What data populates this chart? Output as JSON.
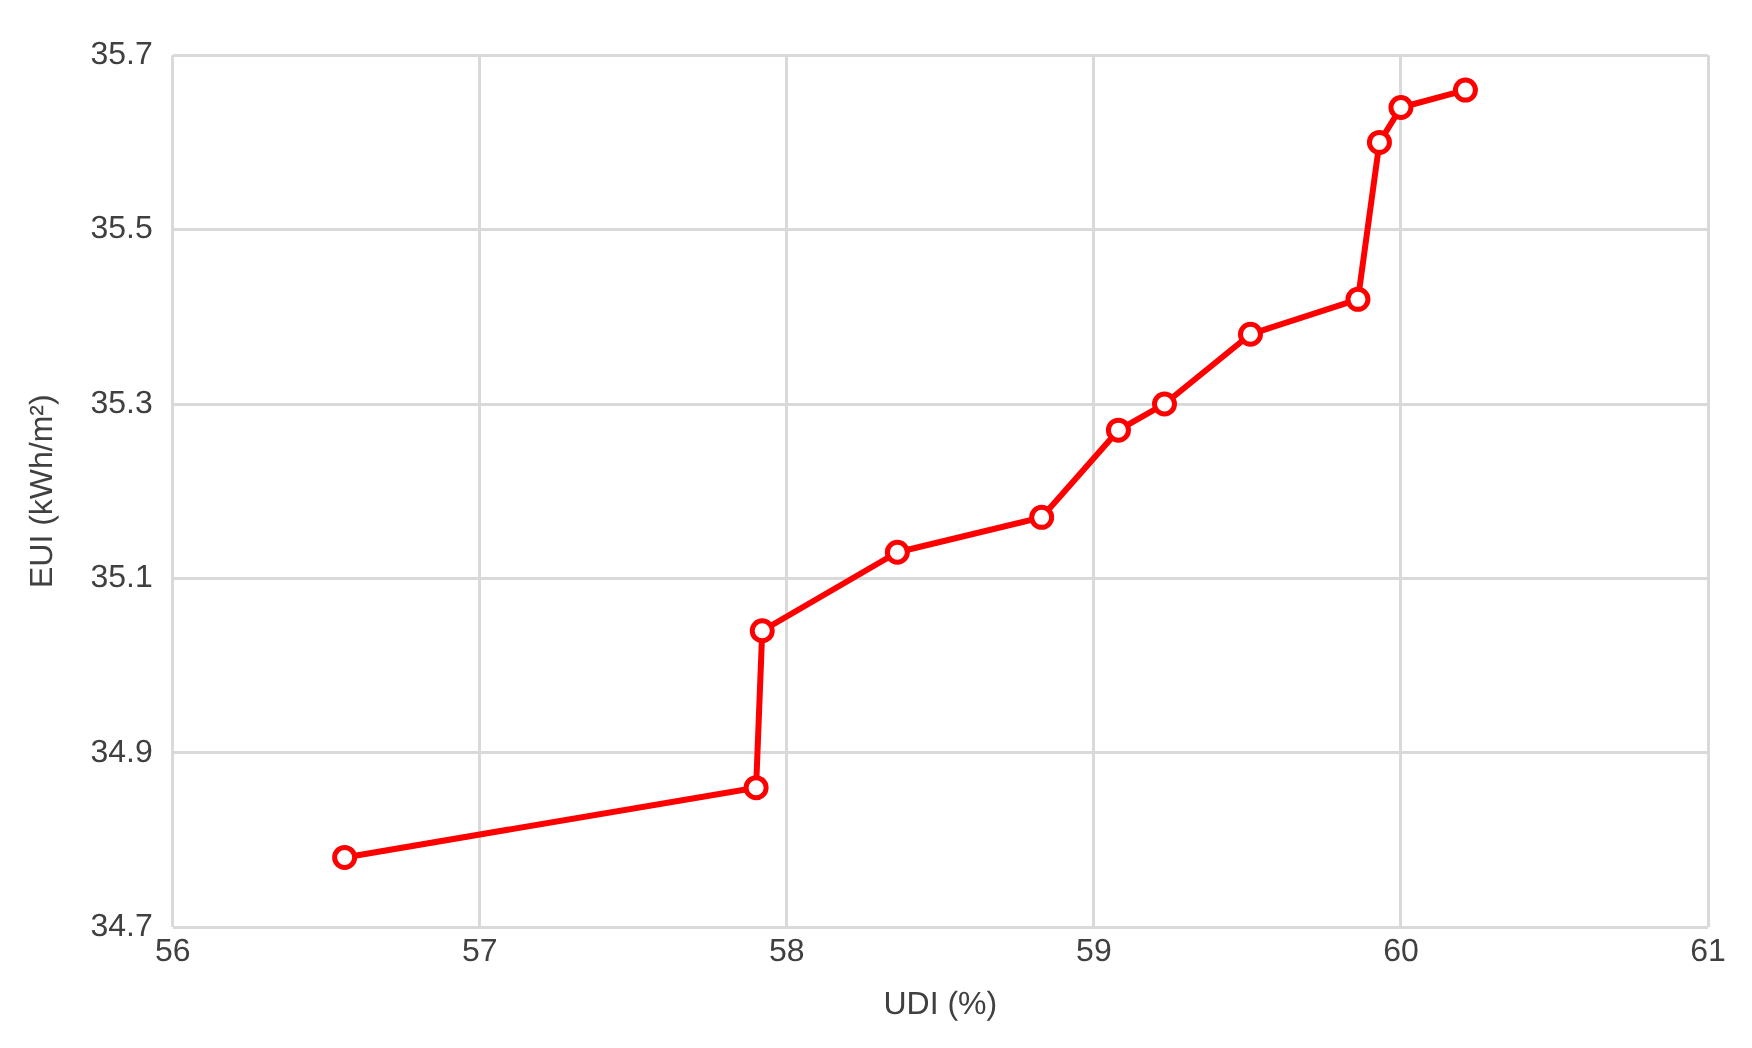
{
  "chart_data": {
    "type": "line",
    "xlabel": "UDI (%)",
    "ylabel": "EUI (kWh/m²)",
    "x": [
      56.56,
      57.9,
      57.92,
      58.36,
      58.83,
      59.08,
      59.23,
      59.51,
      59.86,
      59.93,
      60.0,
      60.21
    ],
    "series": [
      {
        "color": "#ff0000",
        "values": [
          34.78,
          34.86,
          35.04,
          35.13,
          35.17,
          35.27,
          35.3,
          35.38,
          35.42,
          35.6,
          35.64,
          35.66
        ]
      }
    ],
    "xlim": [
      56,
      61
    ],
    "xticks": [
      56,
      57,
      58,
      59,
      60,
      61
    ],
    "ylim": [
      34.7,
      35.7
    ],
    "yticks": [
      34.7,
      34.9,
      35.1,
      35.3,
      35.5,
      35.7
    ],
    "grid": true,
    "legend": false,
    "marker": "circle",
    "line_style": "solid"
  }
}
